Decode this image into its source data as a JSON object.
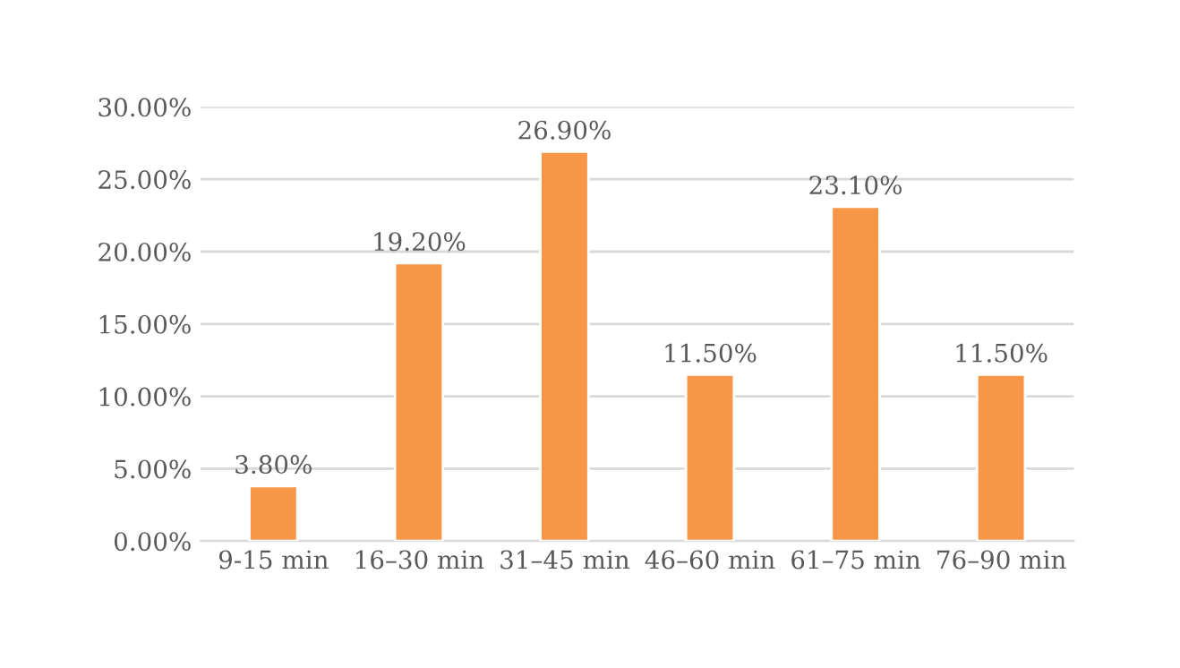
{
  "chart_data": {
    "type": "bar",
    "categories": [
      "9-15 min",
      "16–30 min",
      "31–45 min",
      "46–60 min",
      "61–75 min",
      "76–90 min"
    ],
    "values": [
      3.8,
      19.2,
      26.9,
      11.5,
      23.1,
      11.5
    ],
    "value_labels": [
      "3.80%",
      "19.20%",
      "26.90%",
      "11.50%",
      "23.10%",
      "11.50%"
    ],
    "color": "#f79646",
    "ylim": [
      0,
      30
    ],
    "yticks": [
      {
        "value": 0,
        "label": "0.00%"
      },
      {
        "value": 5,
        "label": "5.00%"
      },
      {
        "value": 10,
        "label": "10.00%"
      },
      {
        "value": 15,
        "label": "15.00%"
      },
      {
        "value": 20,
        "label": "20.00%"
      },
      {
        "value": 25,
        "label": "25.00%"
      },
      {
        "value": 30,
        "label": "30.00%"
      }
    ],
    "grid": "y"
  }
}
